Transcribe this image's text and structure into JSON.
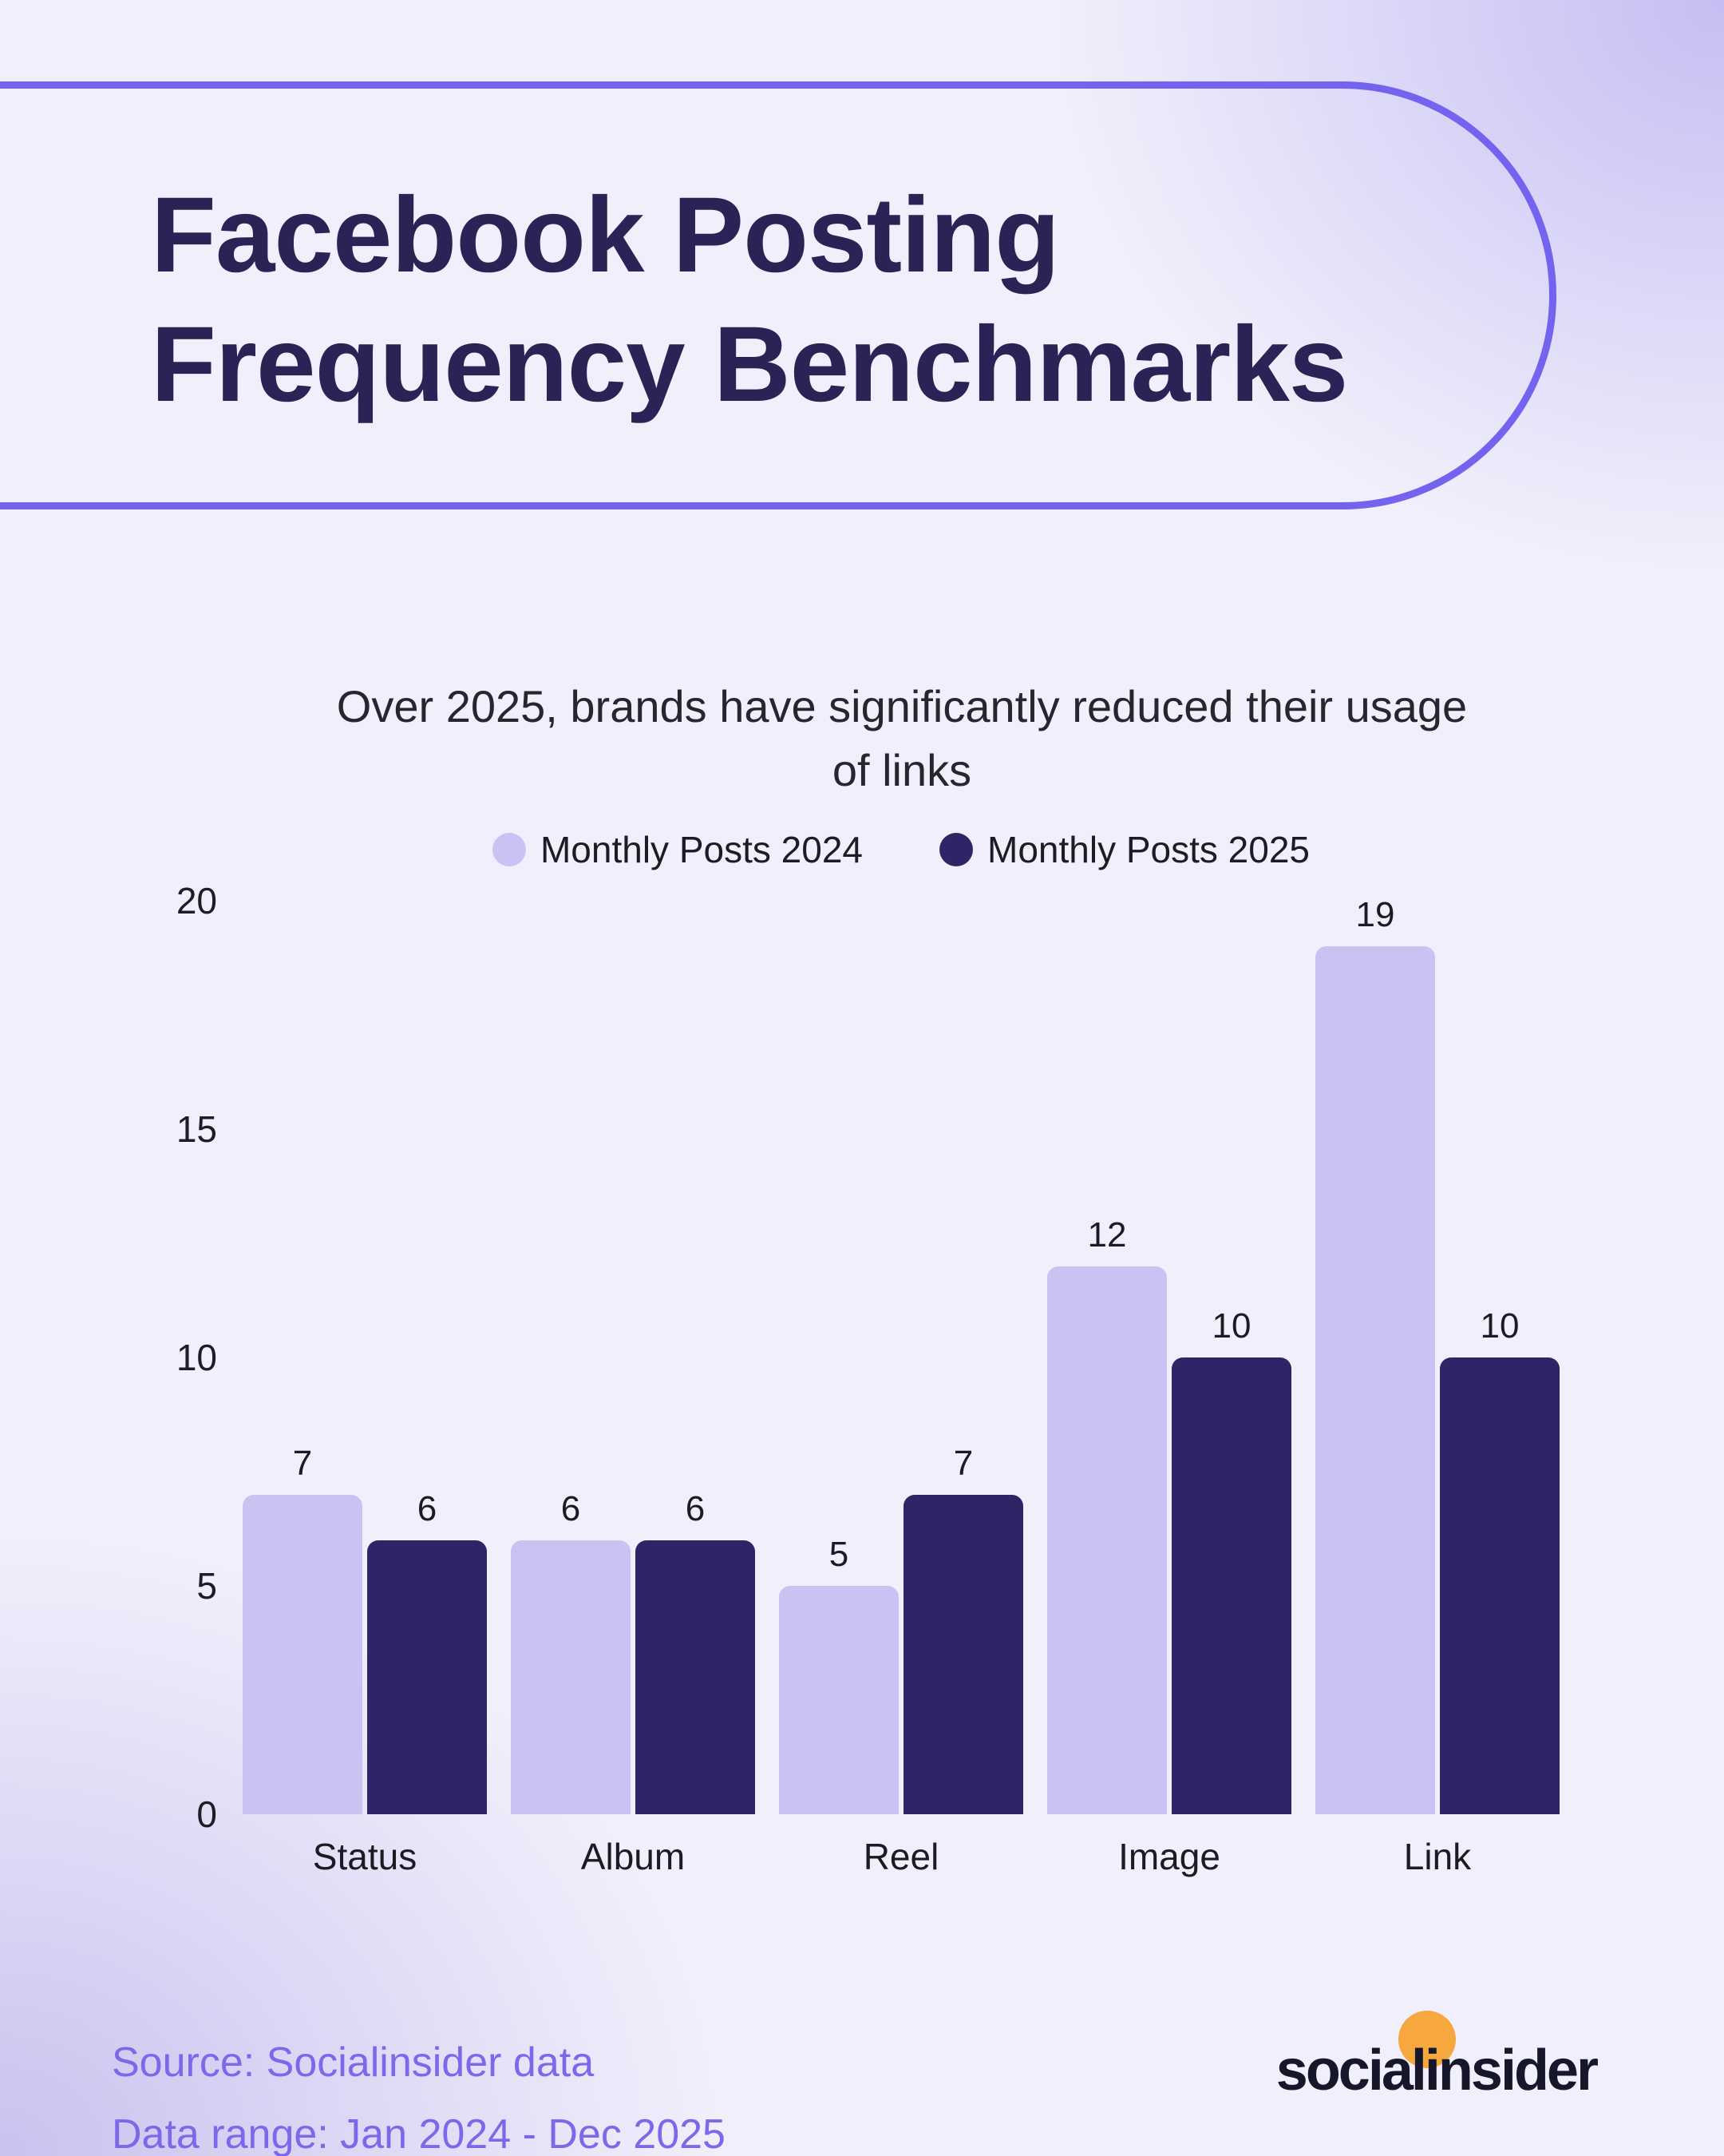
{
  "header": {
    "title_line1": "Facebook Posting",
    "title_line2": "Frequency Benchmarks"
  },
  "subtitle": {
    "line1": "Over 2025, brands have significantly reduced their usage",
    "line2": "of links"
  },
  "legend": {
    "items": [
      {
        "label": "Monthly Posts 2024",
        "color": "#c9c3f4"
      },
      {
        "label": "Monthly Posts 2025",
        "color": "#2e2566"
      }
    ]
  },
  "chart_data": {
    "type": "bar",
    "title": "Over 2025, brands have significantly reduced their usage of links",
    "categories": [
      "Status",
      "Album",
      "Reel",
      "Image",
      "Link"
    ],
    "series": [
      {
        "name": "Monthly Posts 2024",
        "color": "#c9c3f4",
        "values": [
          7,
          6,
          5,
          12,
          19
        ]
      },
      {
        "name": "Monthly Posts 2025",
        "color": "#2e2566",
        "values": [
          6,
          6,
          7,
          10,
          10
        ]
      }
    ],
    "xlabel": "",
    "ylabel": "",
    "ylim": [
      0,
      20
    ],
    "yticks": [
      0,
      5,
      10,
      15,
      20
    ],
    "grid": false,
    "legend_position": "top",
    "value_labels": true
  },
  "footer": {
    "source": "Source: Socialinsider data",
    "range": "Data range: Jan 2024 - Dec 2025"
  },
  "logo": {
    "part1": "socia",
    "part2": "li",
    "part3": "nsider",
    "circle_color": "#f6a83e"
  },
  "colors": {
    "background_base": "#f1effb",
    "background_corner_tint": "#c6bff2",
    "pill_border": "#7463ee",
    "title_text": "#2c2256",
    "body_text": "#1d1d26",
    "footer_text": "#7b68ea",
    "bar_2024": "#c9c3f4",
    "bar_2025": "#2e2566",
    "logo_text": "#17172b",
    "logo_circle": "#f6a83e"
  }
}
